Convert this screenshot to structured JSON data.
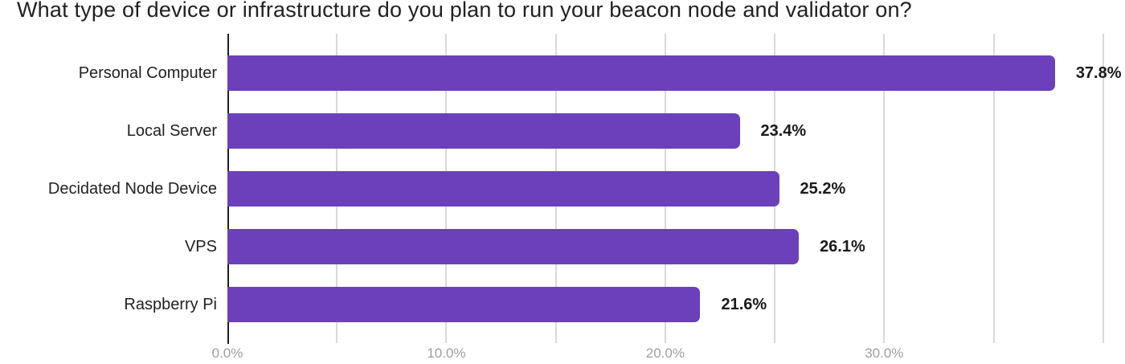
{
  "title": "What type of device or infrastructure do you plan to run your beacon node and validator on?",
  "chart_data": {
    "type": "bar",
    "orientation": "horizontal",
    "title": "What type of device or infrastructure do you plan to run your beacon node and validator on?",
    "categories": [
      "Personal Computer",
      "Local Server",
      "Decidated Node Device",
      "VPS",
      "Raspberry Pi"
    ],
    "values": [
      37.8,
      23.4,
      25.2,
      26.1,
      21.6
    ],
    "value_labels": [
      "37.8%",
      "23.4%",
      "25.2%",
      "26.1%",
      "21.6%"
    ],
    "x_ticks": [
      {
        "value": 0,
        "label": "0.0%"
      },
      {
        "value": 10,
        "label": "10.0%"
      },
      {
        "value": 20,
        "label": "20.0%"
      },
      {
        "value": 30,
        "label": "30.0%"
      }
    ],
    "xlim": [
      0,
      41
    ],
    "gridline_step": 5,
    "gridline_max": 40,
    "grid": true,
    "legend": "none",
    "xlabel": "",
    "ylabel": "",
    "colors": {
      "bar": "#6b40ba",
      "gridline": "#d9d9d9",
      "axis_line": "#1f1f1f",
      "tick_label": "#9e9e9e",
      "category_label": "#212121",
      "value_label": "#1a1a1a",
      "title": "#212121",
      "background": "#ffffff"
    }
  }
}
